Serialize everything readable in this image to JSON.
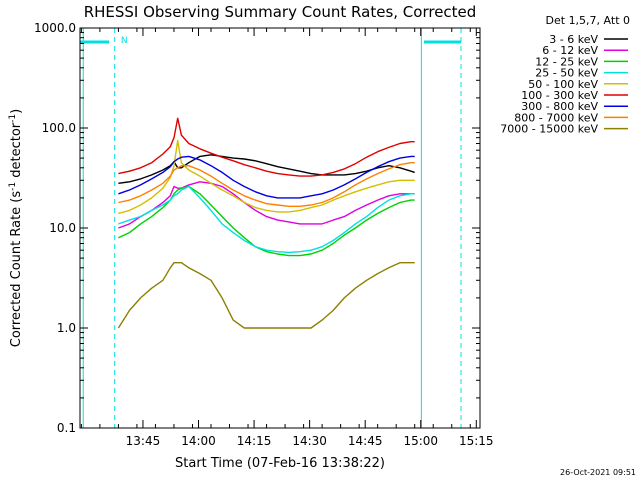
{
  "chart_data": {
    "type": "line",
    "title": "RHESSI Observing Summary Count Rates, Corrected",
    "xlabel": "Start Time (07-Feb-16 13:38:22)",
    "ylabel_main": "Corrected Count Rate (s",
    "ylabel_sup1": "-1",
    "ylabel_mid": " detector",
    "ylabel_sup2": "-1",
    "ylabel_end": ")",
    "yscale": "log",
    "ylim": [
      0.1,
      1000.0
    ],
    "xlim_minutes": [
      -10.37,
      97.63
    ],
    "xticks": [
      {
        "label": "13:45",
        "t": 6.63
      },
      {
        "label": "14:00",
        "t": 21.63
      },
      {
        "label": "14:15",
        "t": 36.63
      },
      {
        "label": "14:30",
        "t": 51.63
      },
      {
        "label": "14:45",
        "t": 66.63
      },
      {
        "label": "15:00",
        "t": 81.63
      },
      {
        "label": "15:15",
        "t": 96.63
      }
    ],
    "yticks": [
      {
        "label": "0.1",
        "v": 0.1
      },
      {
        "label": "1.0",
        "v": 1.0
      },
      {
        "label": "10.0",
        "v": 10.0
      },
      {
        "label": "100.0",
        "v": 100.0
      },
      {
        "label": "1000.0",
        "v": 1000.0
      }
    ],
    "legend_header": "Det 1,5,7, Att 0",
    "legend_placement": "right",
    "x_minutes": [
      0,
      3,
      6,
      9,
      12,
      14,
      15,
      16,
      17,
      19,
      22,
      25,
      28,
      31,
      34,
      37,
      40,
      43,
      46,
      49,
      52,
      55,
      58,
      61,
      64,
      67,
      70,
      73,
      76,
      79,
      80
    ],
    "series": [
      {
        "name": "3 - 6 keV",
        "color": "#000000",
        "values": [
          28,
          29,
          31,
          34,
          38,
          42,
          46,
          40,
          40,
          45,
          52,
          54,
          52,
          50,
          49,
          47,
          44,
          41,
          39,
          37,
          35,
          34,
          34,
          34,
          35,
          37,
          40,
          42,
          40,
          37,
          36
        ]
      },
      {
        "name": "6 - 12 keV",
        "color": "#e000e0",
        "values": [
          10,
          11,
          13,
          15,
          18,
          21,
          26,
          25,
          25,
          27,
          29,
          28,
          26,
          22,
          18,
          15,
          13,
          12,
          11.5,
          11,
          11,
          11,
          12,
          13,
          15,
          17,
          19,
          21,
          22,
          22,
          22
        ]
      },
      {
        "name": "12 - 25 keV",
        "color": "#00d000",
        "values": [
          8,
          9,
          11,
          13,
          16,
          19,
          22,
          24,
          25,
          26,
          22,
          17,
          13,
          10,
          8,
          6.5,
          5.8,
          5.5,
          5.3,
          5.3,
          5.5,
          6,
          7,
          8.5,
          10,
          12,
          14,
          16,
          18,
          19,
          19
        ]
      },
      {
        "name": "25 - 50 keV",
        "color": "#00e0e0",
        "values": [
          11,
          12,
          13,
          15,
          17,
          19,
          21,
          22,
          24,
          26,
          20,
          15,
          11,
          9,
          7.5,
          6.5,
          6,
          5.8,
          5.7,
          5.8,
          6,
          6.5,
          7.5,
          9,
          11,
          13,
          16,
          19,
          21,
          22,
          22
        ]
      },
      {
        "name": "50 - 100 keV",
        "color": "#d0c000",
        "values": [
          14,
          15,
          17,
          20,
          25,
          32,
          42,
          75,
          45,
          38,
          33,
          28,
          24,
          21,
          18,
          16,
          15,
          14.5,
          14.5,
          15,
          16,
          17,
          19,
          21,
          23,
          25,
          27,
          29,
          30,
          30,
          30
        ]
      },
      {
        "name": "100 - 300 keV",
        "color": "#e00000",
        "values": [
          35,
          37,
          40,
          45,
          55,
          65,
          80,
          125,
          85,
          70,
          62,
          56,
          51,
          47,
          43,
          40,
          37,
          35,
          34,
          33,
          33,
          34,
          36,
          39,
          44,
          51,
          58,
          64,
          70,
          73,
          73
        ]
      },
      {
        "name": "300 - 800 keV",
        "color": "#0000e0",
        "values": [
          22,
          24,
          27,
          31,
          36,
          41,
          46,
          49,
          51,
          52,
          48,
          42,
          36,
          30,
          26,
          23,
          21,
          20,
          20,
          20,
          21,
          22,
          24,
          27,
          31,
          36,
          41,
          46,
          50,
          52,
          52
        ]
      },
      {
        "name": "800 - 7000 keV",
        "color": "#ff8000",
        "values": [
          18,
          19,
          21,
          24,
          28,
          33,
          38,
          40,
          42,
          42,
          38,
          33,
          28,
          24,
          21,
          19,
          17.5,
          17,
          16.5,
          16.5,
          17,
          18,
          20,
          23,
          27,
          31,
          35,
          39,
          43,
          45,
          45
        ]
      },
      {
        "name": "7000 - 15000 keV",
        "color": "#8b8000",
        "values": [
          1.0,
          1.5,
          2.0,
          2.5,
          3.0,
          4.0,
          4.5,
          4.5,
          4.5,
          4.0,
          3.5,
          3.0,
          2.0,
          1.2,
          1.0,
          1.0,
          1.0,
          1.0,
          1.0,
          1.0,
          1.0,
          1.2,
          1.5,
          2.0,
          2.5,
          3.0,
          3.5,
          4.0,
          4.5,
          4.5,
          4.5
        ]
      }
    ],
    "attenuator_bars_minutes": [
      [
        -10.37,
        -2.5
      ],
      [
        82.5,
        92.5
      ]
    ],
    "night_lines_minutes": [
      -1.0,
      92.5
    ],
    "saa_lines_minutes": [
      -9.5,
      81.8
    ],
    "marker_label": "N",
    "marker_minutes": -0.4
  },
  "colors": {
    "attenuator": "#00e0e0",
    "night_line": "#00e0e0",
    "axis": "#000000"
  },
  "timestamp": "26-Oct-2021 09:51"
}
